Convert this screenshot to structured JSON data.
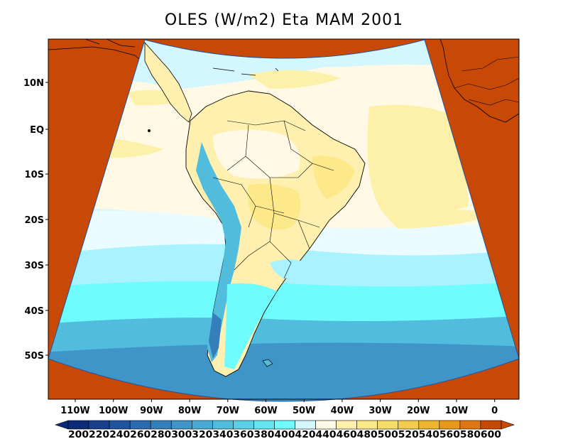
{
  "title": "OLES (W/m2) Eta MAM 2001",
  "lat_labels": [
    "10N",
    "EQ",
    "10S",
    "20S",
    "30S",
    "40S",
    "50S"
  ],
  "lon_labels": [
    "110W",
    "100W",
    "90W",
    "80W",
    "70W",
    "60W",
    "50W",
    "40W",
    "30W",
    "20W",
    "10W",
    "0"
  ],
  "colorbar": {
    "labels": [
      "200",
      "220",
      "240",
      "260",
      "280",
      "300",
      "320",
      "340",
      "360",
      "380",
      "400",
      "420",
      "440",
      "460",
      "480",
      "500",
      "520",
      "540",
      "560",
      "580",
      "600"
    ],
    "colors": [
      "#0b2a78",
      "#173f8c",
      "#1f559e",
      "#2a6aad",
      "#347fba",
      "#3f95c7",
      "#4aa9d2",
      "#52bcdc",
      "#5acfe6",
      "#63e6f1",
      "#6ffcff",
      "#d4f6ff",
      "#fff9e6",
      "#fff0b0",
      "#fde98a",
      "#f6dd6a",
      "#f2cc4c",
      "#eeb52e",
      "#e9991a",
      "#df7612",
      "#c84806"
    ],
    "over_color": "#c84806",
    "under_color": "#0b2a78"
  },
  "colors": {
    "outside": "#c84806",
    "ocean_light": "#d4f6ff",
    "cream": "#fff9e6",
    "yellow": "#fdf0a8",
    "cyan": "#6ffcff",
    "mid_blue": "#52bcdc",
    "deep_blue": "#3f95c7"
  }
}
